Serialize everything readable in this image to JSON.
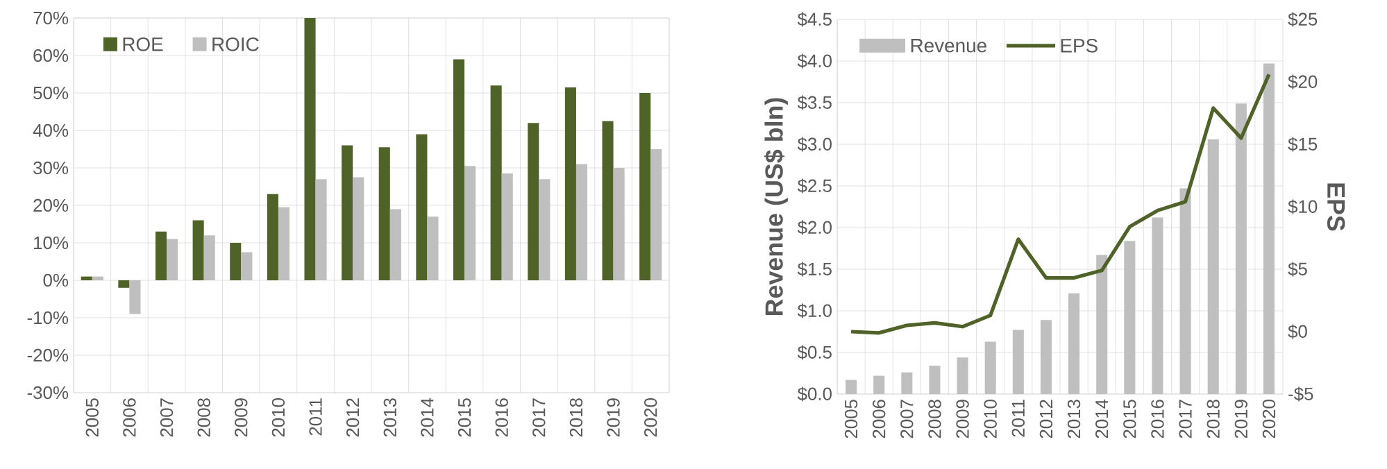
{
  "chart_data": [
    {
      "type": "bar",
      "categories": [
        "2005",
        "2006",
        "2007",
        "2008",
        "2009",
        "2010",
        "2011",
        "2012",
        "2013",
        "2014",
        "2015",
        "2016",
        "2017",
        "2018",
        "2019",
        "2020"
      ],
      "series": [
        {
          "name": "ROE",
          "color": "#4f6228",
          "values": [
            1,
            -2,
            13,
            16,
            10,
            23,
            70,
            36,
            35.5,
            39,
            59,
            52,
            42,
            51.5,
            42.5,
            50
          ]
        },
        {
          "name": "ROIC",
          "color": "#bfbfbf",
          "values": [
            1,
            -9,
            11,
            12,
            7.5,
            19.5,
            27,
            27.5,
            19,
            17,
            30.5,
            28.5,
            27,
            31,
            30,
            35
          ]
        }
      ],
      "ylim": [
        -30,
        70
      ],
      "yticks": [
        {
          "value": -30,
          "label": "-30%"
        },
        {
          "value": -20,
          "label": "-20%"
        },
        {
          "value": -10,
          "label": "-10%"
        },
        {
          "value": 0,
          "label": "0%"
        },
        {
          "value": 10,
          "label": "10%"
        },
        {
          "value": 20,
          "label": "20%"
        },
        {
          "value": 30,
          "label": "30%"
        },
        {
          "value": 40,
          "label": "40%"
        },
        {
          "value": 50,
          "label": "50%"
        },
        {
          "value": 60,
          "label": "60%"
        },
        {
          "value": 70,
          "label": "70%"
        }
      ],
      "grid": true,
      "legend": "top left"
    },
    {
      "type": "bar",
      "categories": [
        "2005",
        "2006",
        "2007",
        "2008",
        "2009",
        "2010",
        "2011",
        "2012",
        "2013",
        "2014",
        "2015",
        "2016",
        "2017",
        "2018",
        "2019",
        "2020"
      ],
      "series": [
        {
          "name": "Revenue",
          "color": "#bfbfbf",
          "values": [
            0.17,
            0.22,
            0.26,
            0.34,
            0.44,
            0.63,
            0.77,
            0.89,
            1.21,
            1.67,
            1.84,
            2.12,
            2.47,
            3.06,
            3.49,
            3.97
          ]
        },
        {
          "name": "EPS",
          "type": "line",
          "axis": "y2",
          "color": "#4f6228",
          "values": [
            0.0,
            -0.1,
            0.5,
            0.7,
            0.4,
            1.3,
            7.4,
            4.3,
            4.3,
            4.9,
            8.4,
            9.7,
            10.4,
            17.9,
            15.5,
            20.6
          ]
        }
      ],
      "ylabel": "Revenue (US$ bln)",
      "y2label": "EPS",
      "ylim": [
        0,
        4.5
      ],
      "yticks": [
        {
          "value": 0,
          "label": "$0.0"
        },
        {
          "value": 0.5,
          "label": "$0.5"
        },
        {
          "value": 1,
          "label": "$1.0"
        },
        {
          "value": 1.5,
          "label": "$1.5"
        },
        {
          "value": 2,
          "label": "$2.0"
        },
        {
          "value": 2.5,
          "label": "$2.5"
        },
        {
          "value": 3,
          "label": "$3.0"
        },
        {
          "value": 3.5,
          "label": "$3.5"
        },
        {
          "value": 4,
          "label": "$4.0"
        },
        {
          "value": 4.5,
          "label": "$4.5"
        }
      ],
      "y2lim": [
        -5,
        25
      ],
      "y2ticks": [
        {
          "value": -5,
          "label": "-$5"
        },
        {
          "value": 0,
          "label": "$0"
        },
        {
          "value": 5,
          "label": "$5"
        },
        {
          "value": 10,
          "label": "$10"
        },
        {
          "value": 15,
          "label": "$15"
        },
        {
          "value": 20,
          "label": "$20"
        },
        {
          "value": 25,
          "label": "$25"
        }
      ],
      "grid": true,
      "legend": "top left"
    }
  ]
}
